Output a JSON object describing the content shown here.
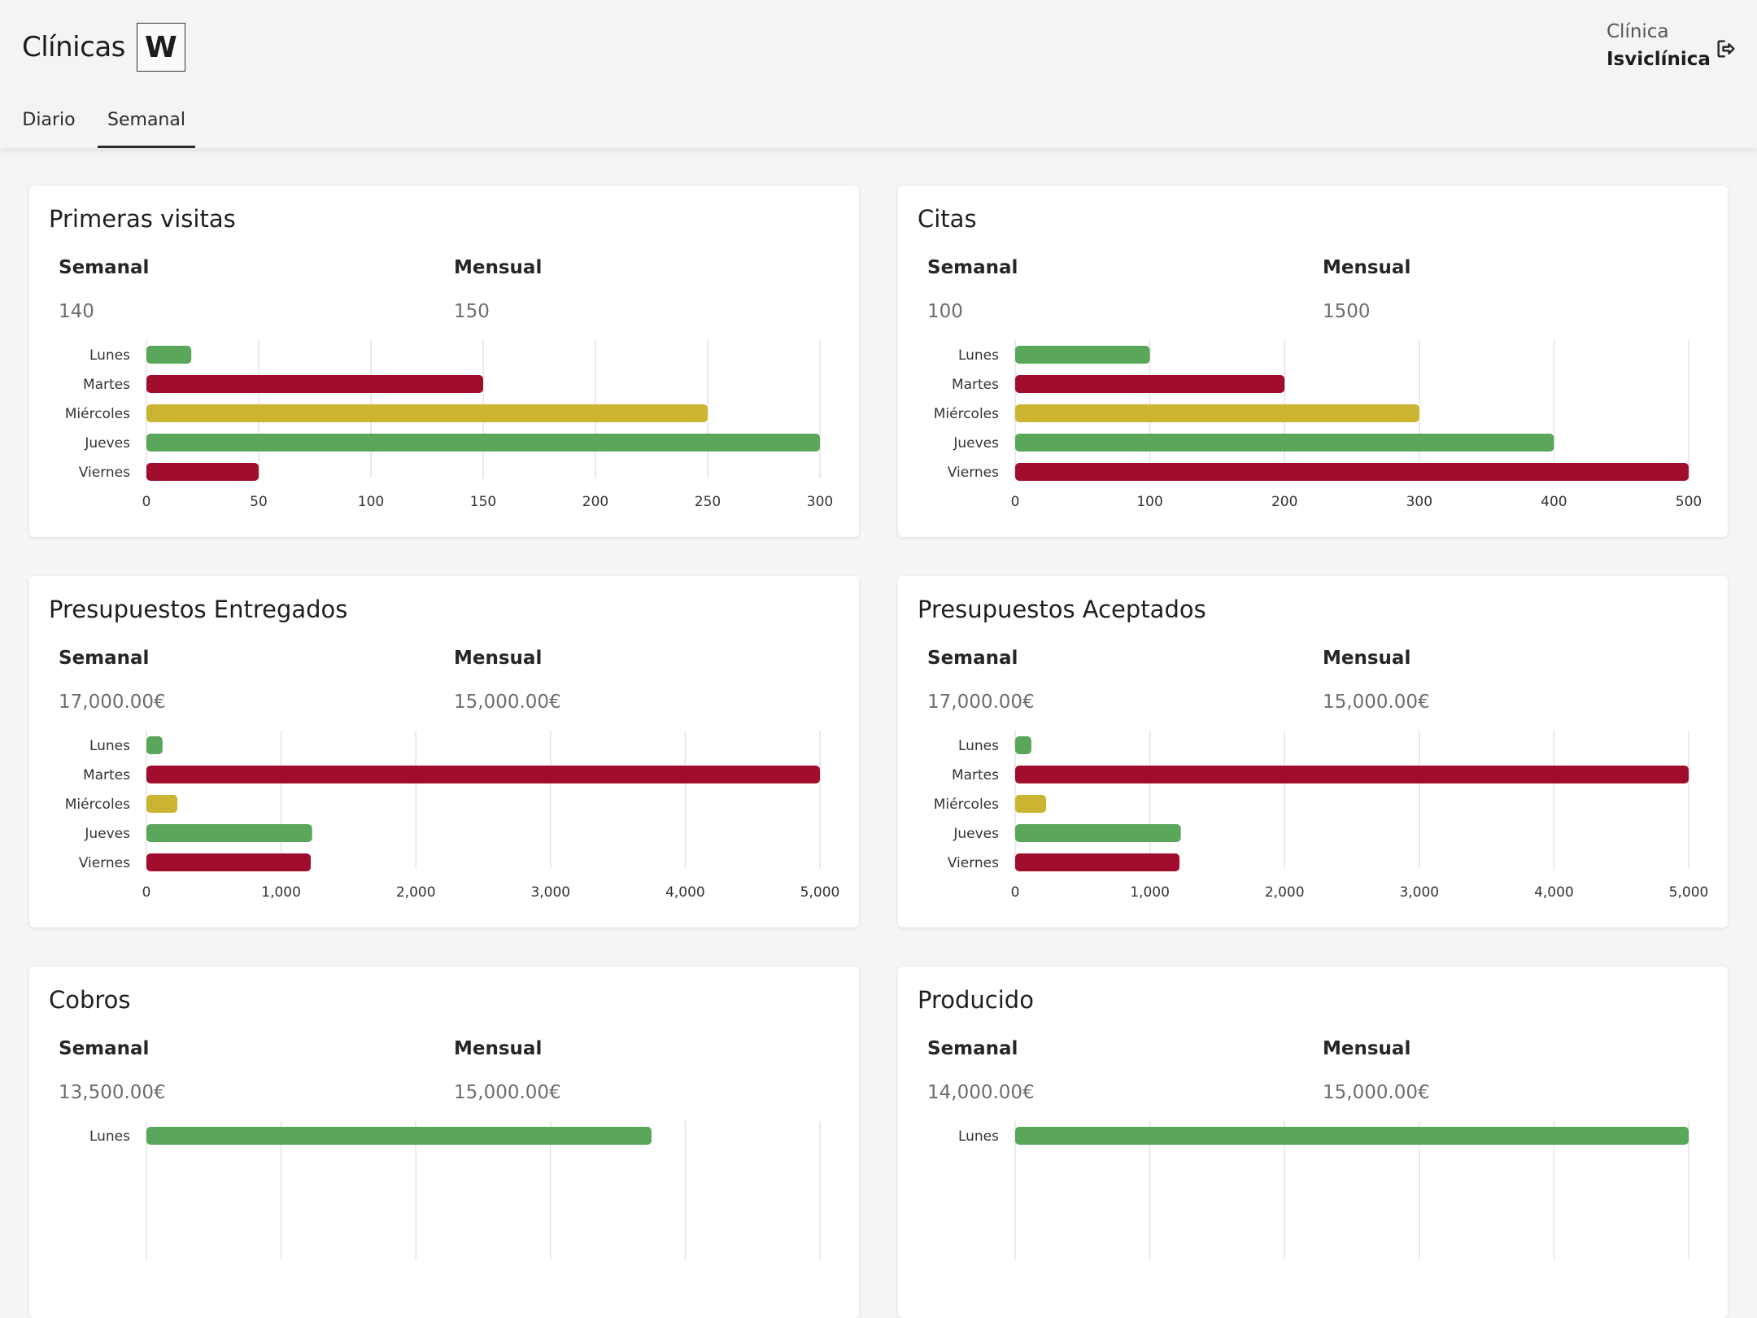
{
  "header": {
    "brand_name": "Clínicas",
    "brand_mark": "W",
    "tabs": [
      {
        "label": "Diario",
        "active": false
      },
      {
        "label": "Semanal",
        "active": true
      }
    ],
    "clinic_label": "Clínica",
    "clinic_name": "Isviclínica",
    "logout_icon": "logout-icon"
  },
  "colors": {
    "green": "#5aa65a",
    "red": "#a10d2d",
    "yellow": "#cbb432",
    "grid": "#e3e3e3"
  },
  "cards": [
    {
      "title": "Primeras visitas",
      "semanal_label": "Semanal",
      "semanal_value": "140",
      "mensual_label": "Mensual",
      "mensual_value": "150"
    },
    {
      "title": "Citas",
      "semanal_label": "Semanal",
      "semanal_value": "100",
      "mensual_label": "Mensual",
      "mensual_value": "1500"
    },
    {
      "title": "Presupuestos Entregados",
      "semanal_label": "Semanal",
      "semanal_value": "17,000.00€",
      "mensual_label": "Mensual",
      "mensual_value": "15,000.00€"
    },
    {
      "title": "Presupuestos Aceptados",
      "semanal_label": "Semanal",
      "semanal_value": "17,000.00€",
      "mensual_label": "Mensual",
      "mensual_value": "15,000.00€"
    },
    {
      "title": "Cobros",
      "semanal_label": "Semanal",
      "semanal_value": "13,500.00€",
      "mensual_label": "Mensual",
      "mensual_value": "15,000.00€"
    },
    {
      "title": "Producido",
      "semanal_label": "Semanal",
      "semanal_value": "14,000.00€",
      "mensual_label": "Mensual",
      "mensual_value": "15,000.00€"
    }
  ],
  "chart_data": [
    {
      "type": "bar",
      "orientation": "horizontal",
      "categories": [
        "Lunes",
        "Martes",
        "Miércoles",
        "Jueves",
        "Viernes"
      ],
      "values": [
        20,
        150,
        250,
        300,
        50
      ],
      "bar_colors": [
        "green",
        "red",
        "yellow",
        "green",
        "red"
      ],
      "xlim": [
        0,
        300
      ],
      "xticks": [
        0,
        50,
        100,
        150,
        200,
        250,
        300
      ],
      "xtick_labels": [
        "0",
        "50",
        "100",
        "150",
        "200",
        "250",
        "300"
      ],
      "grid": true
    },
    {
      "type": "bar",
      "orientation": "horizontal",
      "categories": [
        "Lunes",
        "Martes",
        "Miércoles",
        "Jueves",
        "Viernes"
      ],
      "values": [
        100,
        200,
        300,
        400,
        500
      ],
      "bar_colors": [
        "green",
        "red",
        "yellow",
        "green",
        "red"
      ],
      "xlim": [
        0,
        500
      ],
      "xticks": [
        0,
        100,
        200,
        300,
        400,
        500
      ],
      "xtick_labels": [
        "0",
        "100",
        "200",
        "300",
        "400",
        "500"
      ],
      "grid": true
    },
    {
      "type": "bar",
      "orientation": "horizontal",
      "categories": [
        "Lunes",
        "Martes",
        "Miércoles",
        "Jueves",
        "Viernes"
      ],
      "values": [
        120,
        5000,
        230,
        1230,
        1220
      ],
      "bar_colors": [
        "green",
        "red",
        "yellow",
        "green",
        "red"
      ],
      "xlim": [
        0,
        5000
      ],
      "xticks": [
        0,
        1000,
        2000,
        3000,
        4000,
        5000
      ],
      "xtick_labels": [
        "0",
        "1,000",
        "2,000",
        "3,000",
        "4,000",
        "5,000"
      ],
      "grid": true
    },
    {
      "type": "bar",
      "orientation": "horizontal",
      "categories": [
        "Lunes",
        "Martes",
        "Miércoles",
        "Jueves",
        "Viernes"
      ],
      "values": [
        120,
        5000,
        230,
        1230,
        1220
      ],
      "bar_colors": [
        "green",
        "red",
        "yellow",
        "green",
        "red"
      ],
      "xlim": [
        0,
        5000
      ],
      "xticks": [
        0,
        1000,
        2000,
        3000,
        4000,
        5000
      ],
      "xtick_labels": [
        "0",
        "1,000",
        "2,000",
        "3,000",
        "4,000",
        "5,000"
      ],
      "grid": true
    },
    {
      "type": "bar",
      "orientation": "horizontal",
      "categories": [
        "Lunes"
      ],
      "values": [
        3750
      ],
      "bar_colors": [
        "green"
      ],
      "xlim": [
        0,
        5000
      ],
      "xticks": [
        0,
        1000,
        2000,
        3000,
        4000,
        5000
      ],
      "xtick_labels": [],
      "grid": true
    },
    {
      "type": "bar",
      "orientation": "horizontal",
      "categories": [
        "Lunes"
      ],
      "values": [
        5000
      ],
      "bar_colors": [
        "green"
      ],
      "xlim": [
        0,
        5000
      ],
      "xticks": [
        0,
        1000,
        2000,
        3000,
        4000,
        5000
      ],
      "xtick_labels": [],
      "grid": true
    }
  ]
}
